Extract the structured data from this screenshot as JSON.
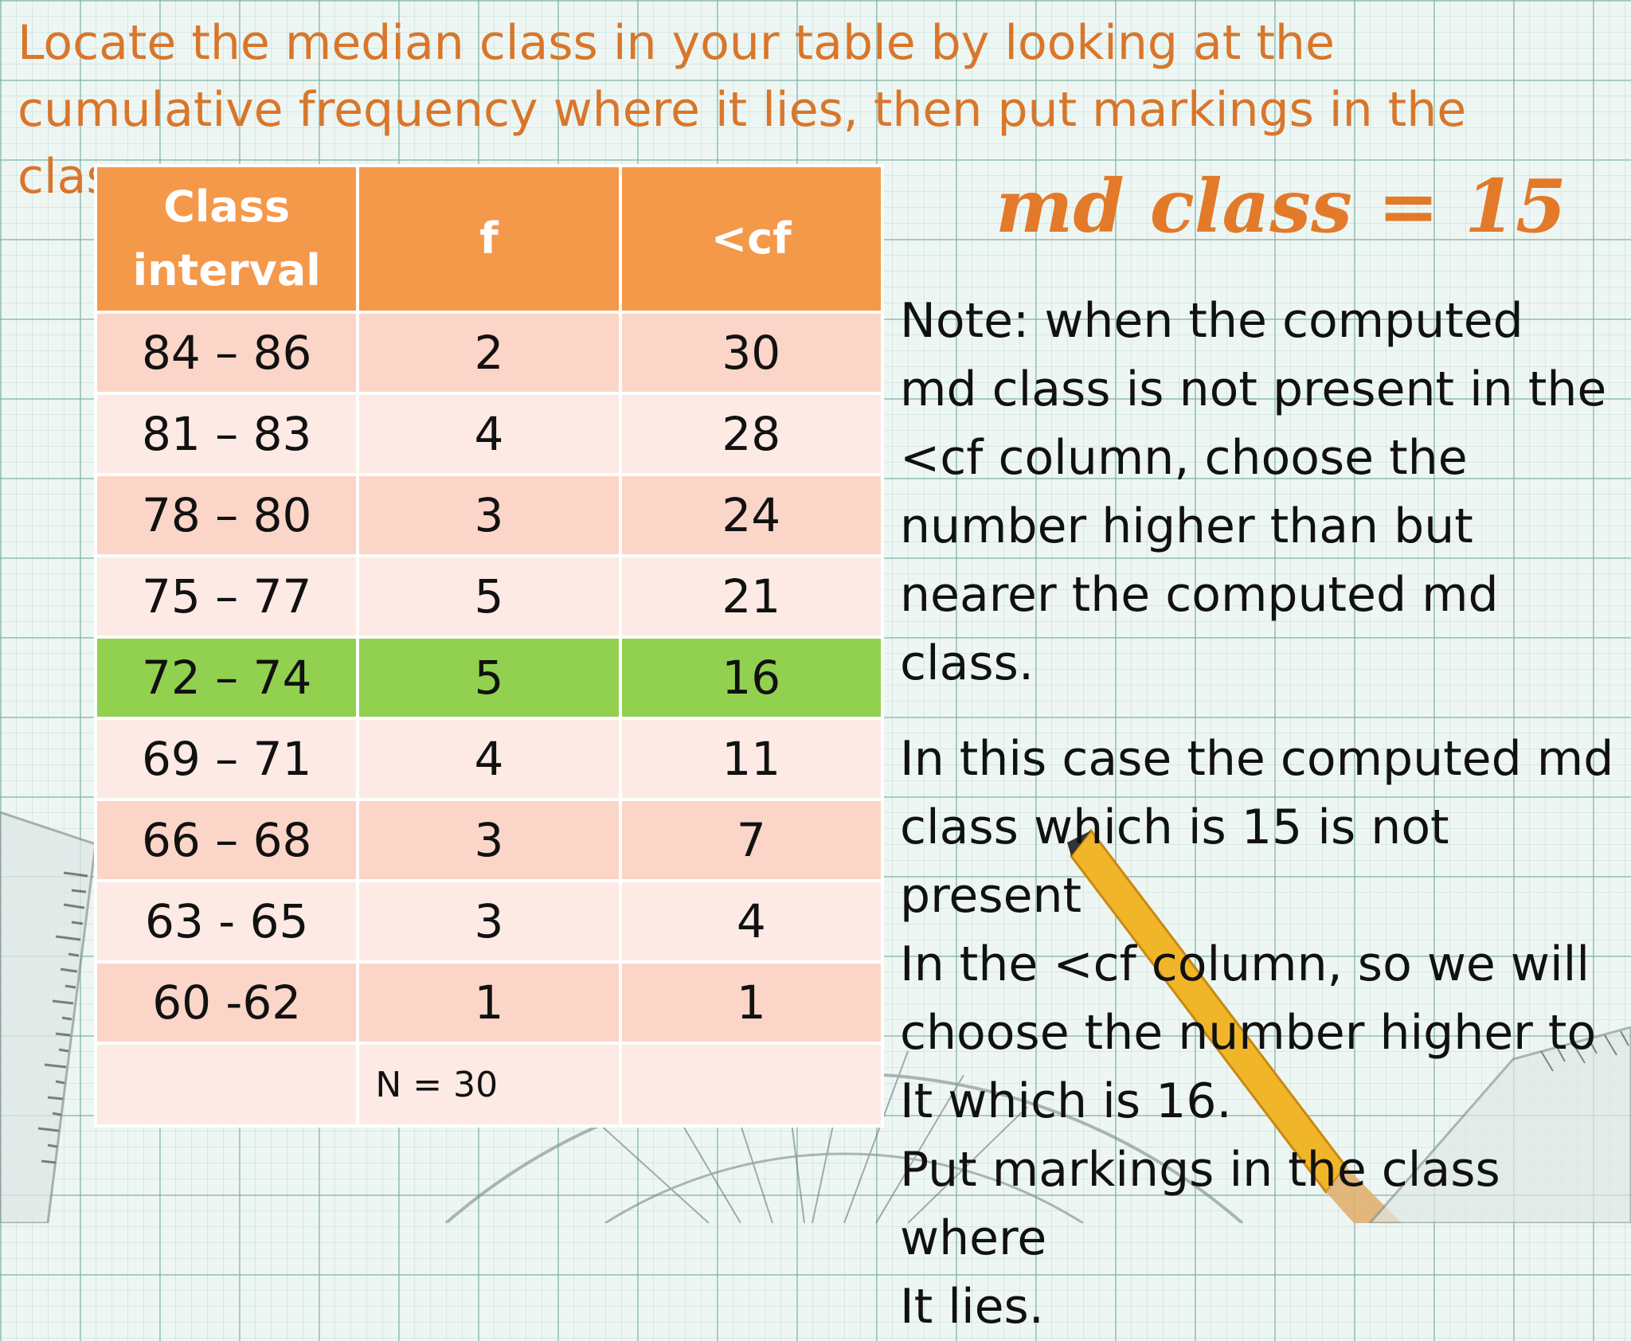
{
  "slide": {
    "title": "Locate the median class in your table by looking at the cumulative frequency where it lies, then put markings in the class.",
    "md_class": "md class = 15"
  },
  "table": {
    "headers": [
      "Class interval",
      "f",
      "<cf"
    ],
    "rows": [
      [
        "84 – 86",
        "2",
        "30"
      ],
      [
        "81 – 83",
        "4",
        "28"
      ],
      [
        "78 – 80",
        "3",
        "24"
      ],
      [
        "75 – 77",
        "5",
        "21"
      ],
      [
        "72 – 74",
        "5",
        "16"
      ],
      [
        "69 – 71",
        "4",
        "11"
      ],
      [
        "66 – 68",
        "3",
        "7"
      ],
      [
        "63 - 65",
        "3",
        "4"
      ],
      [
        "60 -62",
        "1",
        "1"
      ]
    ],
    "total_label": "N = 30",
    "median_row_color": "#92d050",
    "header_color": "#f4984a"
  },
  "notes": {
    "paragraph1": "Note: when the computed\nmd class is not present in the\n<cf column, choose the\nnumber higher than but\nnearer the computed md class.",
    "paragraph2": "In this case the computed md\nclass which is 15 is not present\nIn the <cf column, so we will\nchoose the number higher  to\nIt which is 16.\nPut markings in the class where\nIt lies."
  },
  "colors": {
    "accent": "#e27a2a",
    "grid": "#78afa0"
  },
  "decorations": {
    "ruler_left": "ruler-icon",
    "protractor": "protractor-icon",
    "pencil": "pencil-icon",
    "ruler_right": "ruler-icon"
  }
}
